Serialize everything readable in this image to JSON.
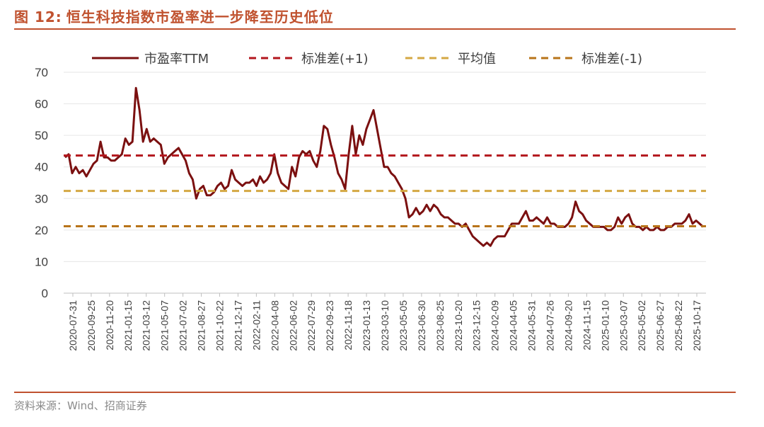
{
  "header": {
    "figure_number": "图 12:",
    "title": "恒生科技指数市盈率进一步降至历史低位"
  },
  "footer": {
    "source": "资料来源：Wind、招商证券"
  },
  "colors": {
    "accent": "#c0522f",
    "pe_line": "#7b1010",
    "std_plus": "#b3161d",
    "mean": "#d4a843",
    "std_minus": "#b8741a"
  },
  "chart_data": {
    "type": "line",
    "title": "",
    "xlabel": "",
    "ylabel": "",
    "ylim": [
      0,
      70
    ],
    "yticks": [
      0,
      10,
      20,
      30,
      40,
      50,
      60,
      70
    ],
    "grid": true,
    "legend_position": "top",
    "x_ticks": [
      "2020-07-31",
      "2020-09-25",
      "2020-11-20",
      "2021-01-15",
      "2021-03-12",
      "2021-05-07",
      "2021-07-02",
      "2021-08-27",
      "2021-10-22",
      "2021-12-17",
      "2022-02-11",
      "2022-04-08",
      "2022-06-02",
      "2022-07-29",
      "2022-09-23",
      "2022-11-18",
      "2023-01-13",
      "2023-03-10",
      "2023-05-05",
      "2023-06-30",
      "2023-08-25",
      "2023-10-20",
      "2023-12-15",
      "2024-02-09",
      "2024-04-05",
      "2024-05-31",
      "2024-07-26",
      "2024-09-20",
      "2024-11-15",
      "2025-01-10",
      "2025-03-07",
      "2025-05-02",
      "2025-06-27",
      "2025-08-22",
      "2025-10-17"
    ],
    "series": [
      {
        "name": "市盈率TTM",
        "style": "solid",
        "color": "#7b1010",
        "values": [
          43,
          44,
          38,
          40,
          38,
          39,
          37,
          39,
          41,
          42,
          48,
          43,
          43,
          42,
          42,
          43,
          44,
          49,
          47,
          48,
          65,
          58,
          48,
          52,
          48,
          49,
          48,
          47,
          41,
          43,
          44,
          45,
          46,
          44,
          42,
          38,
          36,
          30,
          33,
          34,
          31,
          31,
          32,
          34,
          35,
          33,
          34,
          39,
          36,
          35,
          34,
          35,
          35,
          36,
          34,
          37,
          35,
          36,
          38,
          44,
          38,
          35,
          34,
          33,
          40,
          37,
          43,
          45,
          44,
          45,
          42,
          40,
          45,
          53,
          52,
          47,
          43,
          38,
          36,
          33,
          44,
          53,
          44,
          50,
          47,
          52,
          55,
          58,
          52,
          46,
          40,
          40,
          38,
          37,
          35,
          33,
          30,
          24,
          25,
          27,
          25,
          26,
          28,
          26,
          28,
          27,
          25,
          24,
          24,
          23,
          22,
          22,
          21,
          22,
          20,
          18,
          17,
          16,
          15,
          16,
          15,
          17,
          18,
          18,
          18,
          20,
          22,
          22,
          22,
          24,
          26,
          23,
          23,
          24,
          23,
          22,
          24,
          22,
          22,
          21,
          21,
          21,
          22,
          24,
          29,
          26,
          25,
          23,
          22,
          21,
          21,
          21,
          21,
          20,
          20,
          21,
          24,
          22,
          24,
          25,
          22,
          21,
          21,
          20,
          21,
          20,
          20,
          21,
          20,
          20,
          21,
          21,
          22,
          22,
          22,
          23,
          25,
          22,
          23,
          22,
          21
        ]
      },
      {
        "name": "标准差(+1)",
        "style": "dashed",
        "color": "#b3161d",
        "values": [
          43.6
        ]
      },
      {
        "name": "平均值",
        "style": "dashed",
        "color": "#d4a843",
        "values": [
          32.4
        ]
      },
      {
        "name": "标准差(-1)",
        "style": "dashed",
        "color": "#b8741a",
        "values": [
          21.2
        ]
      }
    ]
  }
}
